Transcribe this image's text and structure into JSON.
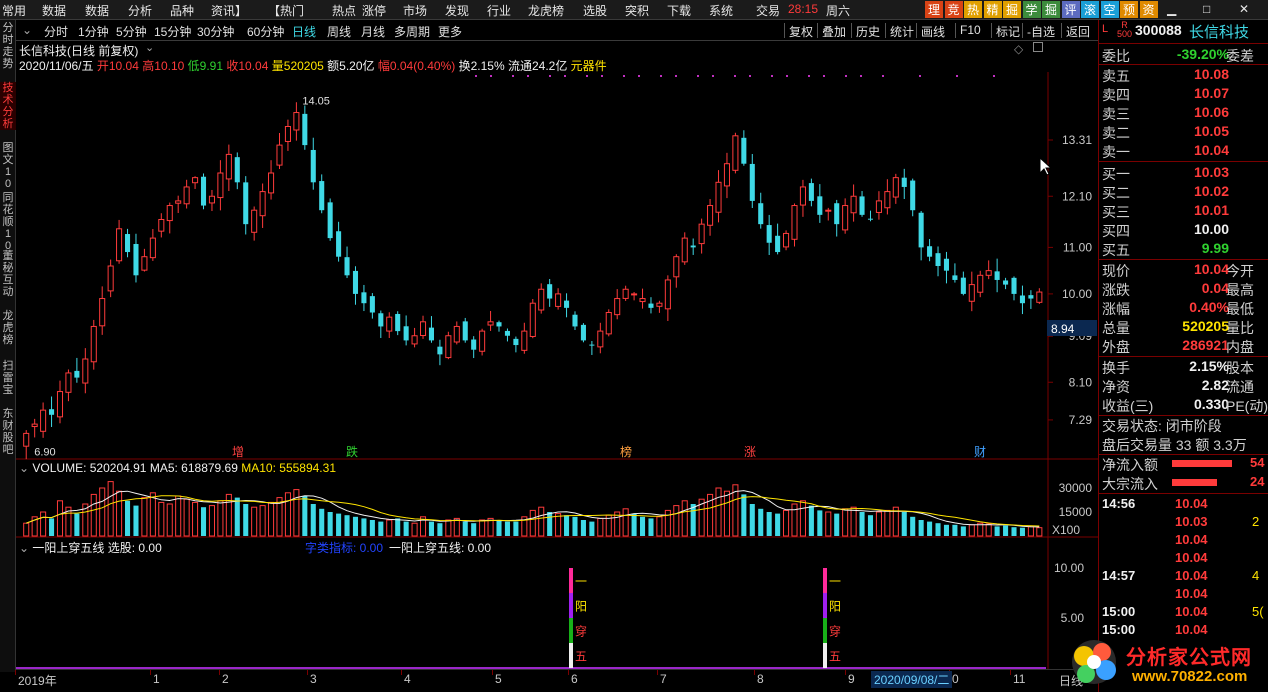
{
  "menu": {
    "items": [
      "常用",
      "数据",
      "数据",
      "分析",
      "品种",
      "资讯】",
      "【热门",
      "热点",
      "涨停",
      "市场",
      "发现",
      "行业",
      "龙虎榜",
      "选股",
      "突积",
      "下载",
      "系统",
      "交易"
    ],
    "time": "28:15",
    "weekday": "周六",
    "quick_buttons": [
      "理",
      "竞",
      "热",
      "精",
      "掘",
      "学",
      "掘",
      "评",
      "滚",
      "空",
      "预",
      "资"
    ],
    "quick_colors": [
      "#d84315",
      "#d84315",
      "#e0a000",
      "#e0a000",
      "#e0a000",
      "#3c8c3c",
      "#3c8c3c",
      "#5c6bc0",
      "#1a9fd6",
      "#1a9fd6",
      "#e08a00",
      "#e08a00"
    ],
    "window_controls": [
      "▁",
      "□",
      "✕"
    ]
  },
  "toolbar": {
    "periods": [
      "分时",
      "1分钟",
      "5分钟",
      "15分钟",
      "30分钟",
      "60分钟",
      "日线",
      "周线",
      "月线",
      "多周期",
      "更多"
    ],
    "active_period": "日线",
    "more_label": "更多",
    "right_buttons": [
      "复权",
      "叠加",
      "历史",
      "统计",
      "画线",
      "F10",
      "标记",
      "-自选",
      "返回"
    ]
  },
  "left_tabs": [
    {
      "label": "分时走势",
      "active": false
    },
    {
      "label": "技术分析",
      "active": true
    },
    {
      "label": "图文10",
      "active": false
    },
    {
      "label": "同花顺10",
      "active": false
    },
    {
      "label": "董秘互动",
      "active": false
    },
    {
      "label": "龙虎榜",
      "active": false
    },
    {
      "label": "扫雷宝",
      "active": false
    },
    {
      "label": "东财股吧",
      "active": false
    }
  ],
  "header": {
    "stock_title": "长信科技(日线 前复权)",
    "date": "2020/11/06/五",
    "open_label": "开",
    "open": "10.04",
    "high_label": "高",
    "high": "10.10",
    "low_label": "低",
    "low": "9.91",
    "close_label": "收",
    "close": "10.04",
    "vol_label": "量",
    "vol": "520205",
    "amount": "额5.20亿",
    "change_label": "幅",
    "change": "0.04(0.40%)",
    "turnover": "换2.15%",
    "float": "流通24.2亿",
    "sector": "元器件"
  },
  "price_axis": {
    "ticks": [
      "13.31",
      "12.10",
      "11.00",
      "10.00",
      "9.09",
      "8.10",
      "7.29"
    ],
    "current_price_tag": "8.94",
    "high_mark": "14.05",
    "low_mark": "6.90"
  },
  "event_markers": [
    {
      "label": "增",
      "color": "#ff4040"
    },
    {
      "label": "跌",
      "color": "#30d030"
    },
    {
      "label": "榜",
      "color": "#ffa040"
    },
    {
      "label": "涨",
      "color": "#ff4040"
    },
    {
      "label": "财",
      "color": "#40a0ff"
    }
  ],
  "volume_panel": {
    "title": "VOLUME: 520204.91",
    "ma5": "MA5: 618879.69",
    "ma10": "MA10: 555894.31",
    "axis_ticks": [
      "30000",
      "15000"
    ],
    "unit": "X100"
  },
  "indicator_panel": {
    "title": "一阳上穿五线 选股: 0.00",
    "tag": "字类指标: 0.00",
    "value": "一阳上穿五线: 0.00",
    "axis_ticks": [
      "10.00",
      "5.00"
    ],
    "signal_chars": [
      "一",
      "阳",
      "穿",
      "五"
    ]
  },
  "x_axis": {
    "labels": [
      "2019年",
      "1",
      "2",
      "3",
      "4",
      "5",
      "6",
      "7",
      "8",
      "9",
      "0",
      "11"
    ],
    "cursor_date": "2020/09/08/二",
    "right_label": "日线"
  },
  "quote": {
    "flag_L": "L",
    "flag_R": "R",
    "flag_500": "500",
    "code": "300088",
    "name": "长信科技",
    "wei_bi_label": "委比",
    "wei_bi": "-39.20%",
    "wei_cha_label": "委差",
    "asks": [
      {
        "label": "卖五",
        "price": "10.08"
      },
      {
        "label": "卖四",
        "price": "10.07"
      },
      {
        "label": "卖三",
        "price": "10.06"
      },
      {
        "label": "卖二",
        "price": "10.05"
      },
      {
        "label": "卖一",
        "price": "10.04"
      }
    ],
    "bids": [
      {
        "label": "买一",
        "price": "10.03"
      },
      {
        "label": "买二",
        "price": "10.02"
      },
      {
        "label": "买三",
        "price": "10.01"
      },
      {
        "label": "买四",
        "price": "10.00"
      },
      {
        "label": "买五",
        "price": "9.99"
      }
    ],
    "stats": [
      {
        "label": "现价",
        "value": "10.04",
        "right": "今开",
        "color": "red"
      },
      {
        "label": "涨跌",
        "value": "0.04",
        "right": "最高",
        "color": "red"
      },
      {
        "label": "涨幅",
        "value": "0.40%",
        "right": "最低",
        "color": "red"
      },
      {
        "label": "总量",
        "value": "520205",
        "right": "量比",
        "color": "yel"
      },
      {
        "label": "外盘",
        "value": "286921",
        "right": "内盘",
        "color": "red"
      }
    ],
    "stats2": [
      {
        "label": "换手",
        "value": "2.15%",
        "right": "股本"
      },
      {
        "label": "净资",
        "value": "2.82",
        "right": "流通"
      },
      {
        "label": "收益(三)",
        "value": "0.330",
        "right": "PE(动)"
      }
    ],
    "trade_status": "交易状态: 闭市阶段",
    "after_hours": "盘后交易量 33 额 3.3万",
    "net_inflow_label": "净流入额",
    "net_inflow_val": "54",
    "block_inflow_label": "大宗流入",
    "block_inflow_val": "24",
    "ticks": [
      {
        "time": "14:56",
        "price": "10.04",
        "extra": ""
      },
      {
        "time": "",
        "price": "10.03",
        "extra": "2"
      },
      {
        "time": "",
        "price": "10.04",
        "extra": ""
      },
      {
        "time": "",
        "price": "10.04",
        "extra": ""
      },
      {
        "time": "14:57",
        "price": "10.04",
        "extra": "4"
      },
      {
        "time": "",
        "price": "10.04",
        "extra": ""
      },
      {
        "time": "15:00",
        "price": "10.04",
        "extra": "5("
      },
      {
        "time": "15:00",
        "price": "10.04",
        "extra": ""
      }
    ]
  },
  "watermark": {
    "text": "分析家公式网",
    "url": "www.70822.com"
  },
  "colors": {
    "up": "#ff3b3b",
    "down": "#3fd9e6",
    "ma5": "#f0f0f0",
    "ma10": "#ffe400",
    "accent": "#7a0000"
  },
  "chart_data": {
    "type": "candlestick",
    "price_range": [
      6.6,
      14.6
    ],
    "closes": [
      7.0,
      7.2,
      7.5,
      7.4,
      7.9,
      8.3,
      8.2,
      8.6,
      9.3,
      9.9,
      10.6,
      11.4,
      10.9,
      10.4,
      10.8,
      11.2,
      11.6,
      11.9,
      12.0,
      12.3,
      12.5,
      11.9,
      12.1,
      12.6,
      13.0,
      12.4,
      11.5,
      11.8,
      12.2,
      12.6,
      13.2,
      13.6,
      13.9,
      13.2,
      12.4,
      11.8,
      11.2,
      10.8,
      10.4,
      10.0,
      9.8,
      9.6,
      9.3,
      9.5,
      9.2,
      9.0,
      9.1,
      9.4,
      9.0,
      8.7,
      9.1,
      9.3,
      9.0,
      8.8,
      9.2,
      9.4,
      9.3,
      9.1,
      8.9,
      9.2,
      9.8,
      10.1,
      9.9,
      10.0,
      9.7,
      9.3,
      9.0,
      8.9,
      9.2,
      9.6,
      9.9,
      10.1,
      10.0,
      9.9,
      9.7,
      9.8,
      10.3,
      10.8,
      11.2,
      11.0,
      11.5,
      11.9,
      12.4,
      12.8,
      13.4,
      12.8,
      12.0,
      11.5,
      11.1,
      10.9,
      11.3,
      11.9,
      12.3,
      12.0,
      11.7,
      11.8,
      11.5,
      11.9,
      12.1,
      11.7,
      11.6,
      12.0,
      12.2,
      12.5,
      12.3,
      11.8,
      11.0,
      10.8,
      10.6,
      10.5,
      10.3,
      10.0,
      10.2,
      10.4,
      10.5,
      10.3,
      10.2,
      10.0,
      9.8,
      9.9,
      10.04
    ],
    "volume_range": [
      0,
      40000
    ],
    "volumes": [
      8000,
      12000,
      15000,
      11000,
      22000,
      18000,
      14000,
      20000,
      26000,
      30000,
      34000,
      28000,
      22000,
      19000,
      24000,
      27000,
      21000,
      20000,
      25000,
      23000,
      21000,
      18000,
      19000,
      22000,
      26000,
      24000,
      20000,
      18000,
      19000,
      21000,
      24000,
      27000,
      29000,
      25000,
      20000,
      17000,
      15000,
      14000,
      13000,
      12000,
      11000,
      10000,
      9000,
      10000,
      11000,
      9000,
      8000,
      12000,
      9000,
      8000,
      10000,
      11000,
      9000,
      8000,
      10000,
      11000,
      10000,
      9000,
      9000,
      12000,
      16000,
      18000,
      15000,
      14000,
      13000,
      12000,
      10000,
      9000,
      11000,
      13000,
      15000,
      17000,
      14000,
      12000,
      11000,
      12000,
      16000,
      19000,
      22000,
      20000,
      23000,
      26000,
      30000,
      28000,
      32000,
      26000,
      20000,
      17000,
      15000,
      14000,
      16000,
      20000,
      22000,
      19000,
      16000,
      15000,
      14000,
      17000,
      18000,
      15000,
      13000,
      15000,
      16000,
      18000,
      15000,
      12000,
      10000,
      9000,
      8000,
      7000,
      7000,
      6000,
      7000,
      8000,
      7500,
      6000,
      6500,
      5500,
      5200,
      5800,
      5200
    ],
    "indicator": {
      "name": "一阳上穿五线",
      "signal_index": [
        62,
        98
      ],
      "signal_value": 10
    }
  }
}
